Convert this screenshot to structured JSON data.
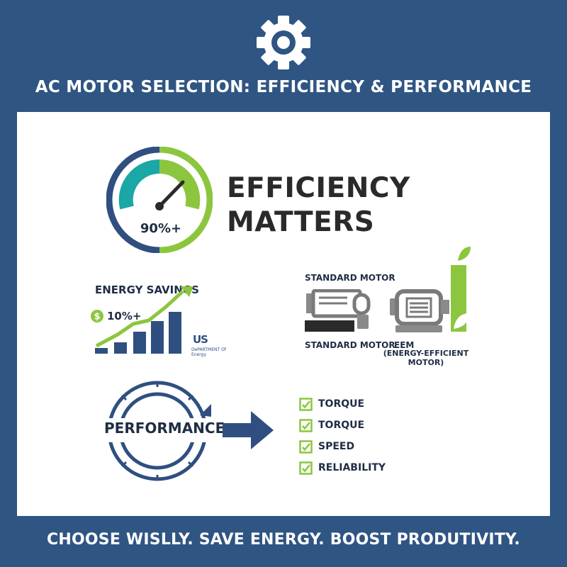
{
  "header": {
    "icon": "gear-icon",
    "title": "AC MOTOR SELECTION: EFFICIENCY & PERFORMANCE"
  },
  "efficiency": {
    "gauge_value": "90%+",
    "heading_line1": "EFFICIENCY",
    "heading_line2": "MATTERS"
  },
  "energy_savings": {
    "title": "ENERGY SAVINGS",
    "value": "10%+",
    "logo_mark": "US",
    "logo_sub": "DePARTMENT Of Energy"
  },
  "motors": {
    "standard_title": "STANDARD MOTOR",
    "standard_caption": "STANDARD MOTOR",
    "eem_caption": "EEM",
    "eem_subcaption": "(ENERGY-EFFICIENT MOTOR)"
  },
  "performance": {
    "label": "PERFORMANCE",
    "items": [
      "TORQUE",
      "TORQUE",
      "SPEED",
      "RELIABILITY"
    ]
  },
  "footer": {
    "tagline": "CHOOSE WISLLY. SAVE ENERGY. BOOST PRODUTIVITY."
  },
  "colors": {
    "background": "#2f5583",
    "panel": "#ffffff",
    "navy": "#2f4f80",
    "teal": "#1aa7a6",
    "green": "#8cc63f",
    "gray": "#7a7a7a",
    "text_dark": "#1f2d44"
  }
}
